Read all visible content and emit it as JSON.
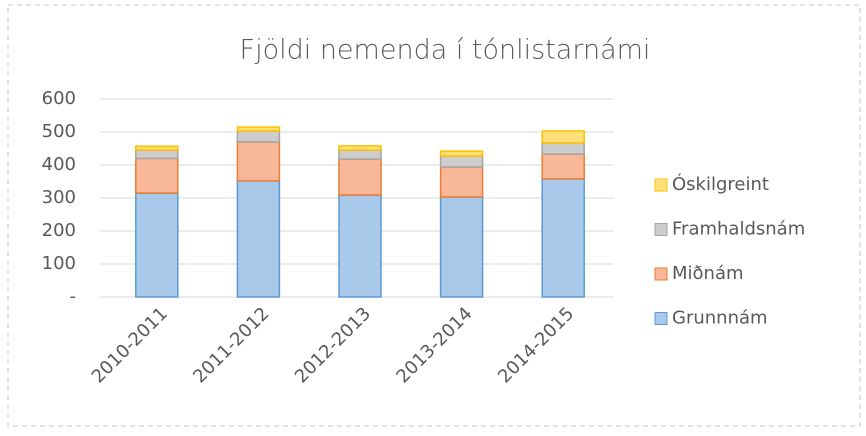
{
  "chart_data": {
    "type": "stacked_bar",
    "title": "Fjöldi nemenda í tónlistarnámi",
    "categories": [
      "2010-2011",
      "2011-2012",
      "2012-2013",
      "2013-2014",
      "2014-2015"
    ],
    "series": [
      {
        "name": "Grunnnám",
        "color": "#a9c9ea",
        "border": "#5b9bd5",
        "values": [
          315,
          352,
          309,
          303,
          358
        ]
      },
      {
        "name": "Miðnám",
        "color": "#f7b798",
        "border": "#ed7d31",
        "values": [
          105,
          118,
          109,
          91,
          75
        ]
      },
      {
        "name": "Framhaldsnám",
        "color": "#cdcdcd",
        "border": "#a5a5a5",
        "values": [
          25,
          33,
          27,
          33,
          34
        ]
      },
      {
        "name": "Óskilgreint",
        "color": "#ffdf7a",
        "border": "#ffc000",
        "values": [
          12,
          12,
          13,
          15,
          36
        ]
      }
    ],
    "ylim": [
      0,
      600
    ],
    "yticks": [
      {
        "value": 0,
        "label": "-"
      },
      100,
      200,
      300,
      400,
      500,
      600
    ],
    "grid": true
  }
}
